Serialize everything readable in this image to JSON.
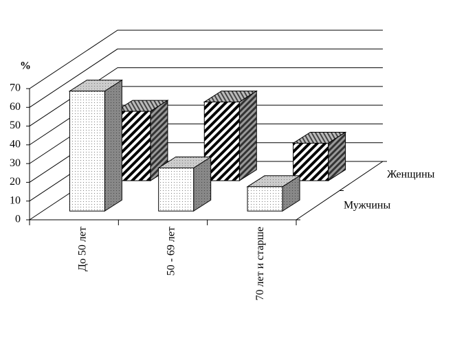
{
  "chart_data": {
    "type": "bar3d",
    "y_label": "%",
    "categories": [
      "До 50 лет",
      "50 - 69 лет",
      "70 лет и старше"
    ],
    "series": [
      {
        "name": "Мужчины",
        "values": [
          64,
          23,
          13
        ]
      },
      {
        "name": "Женщины",
        "values": [
          37,
          42,
          20
        ]
      }
    ],
    "ylim": [
      0,
      70
    ],
    "yticks": [
      0,
      10,
      20,
      30,
      40,
      50,
      60,
      70
    ],
    "grid": true
  }
}
